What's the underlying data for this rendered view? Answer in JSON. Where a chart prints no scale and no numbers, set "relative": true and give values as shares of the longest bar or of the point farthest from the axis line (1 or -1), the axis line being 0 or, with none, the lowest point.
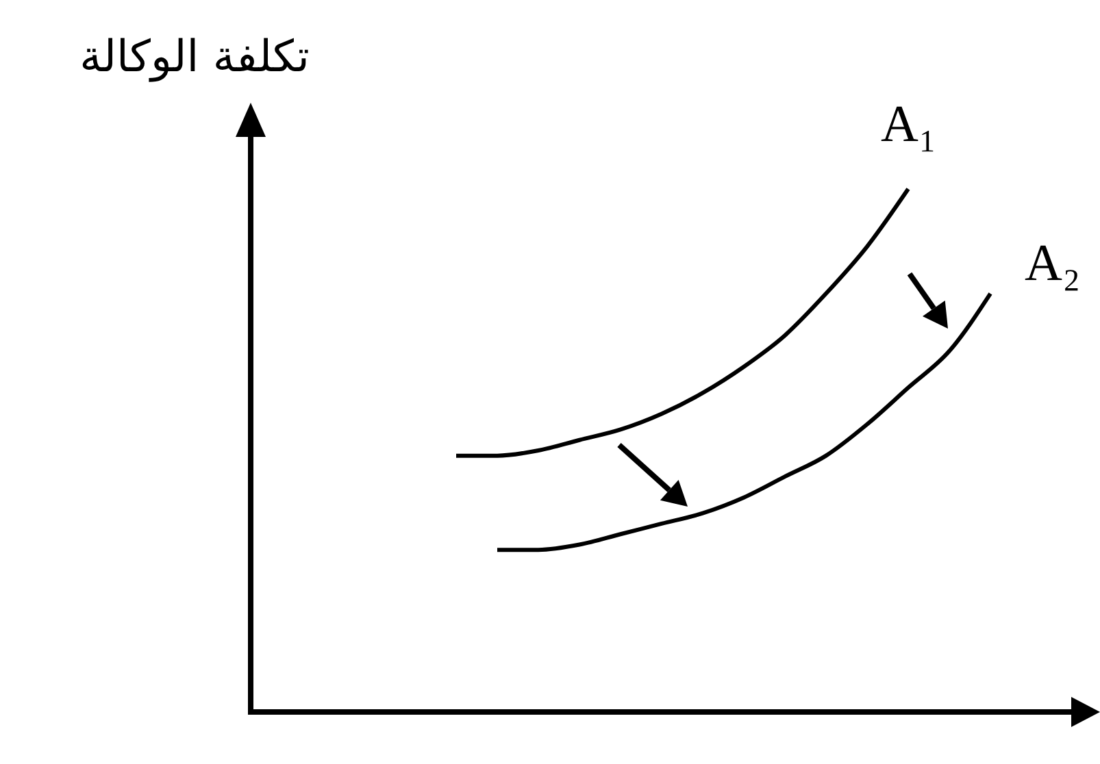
{
  "chart_data": {
    "type": "line",
    "ylabel": "تكلفة الوكالة",
    "relative": true,
    "categories": [
      null,
      null,
      null,
      null,
      null,
      null,
      null,
      null,
      null,
      null,
      null,
      null,
      null,
      null,
      null,
      null,
      null,
      null,
      null,
      null,
      null
    ],
    "series": [
      {
        "name": "A₁",
        "color": "#000000",
        "values": [
          null,
          null,
          null,
          null,
          null,
          0.49,
          0.49,
          0.5,
          0.52,
          0.54,
          0.57,
          0.61,
          0.66,
          0.72,
          0.8,
          0.89,
          1,
          null,
          null,
          null,
          null
        ]
      },
      {
        "name": "A₂",
        "color": "#000000",
        "values": [
          null,
          null,
          null,
          null,
          null,
          null,
          0.31,
          0.31,
          0.32,
          0.34,
          0.36,
          0.38,
          0.41,
          0.45,
          0.49,
          0.55,
          0.62,
          0.69,
          0.8,
          null,
          null
        ]
      }
    ]
  }
}
